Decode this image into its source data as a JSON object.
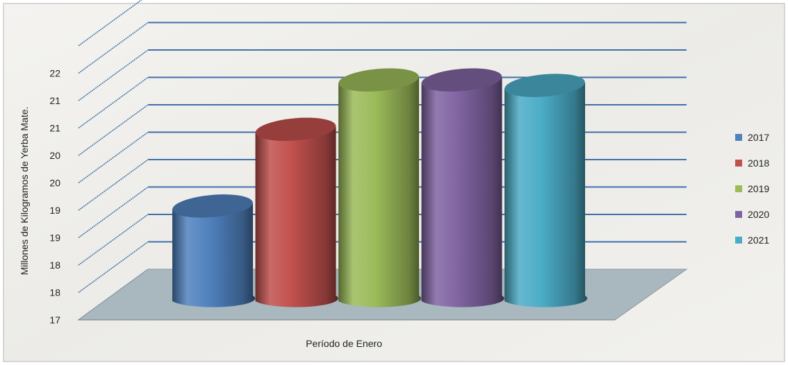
{
  "chart_data": {
    "type": "bar",
    "title": "",
    "xlabel": "Período de  Enero",
    "ylabel": "Millones de Kilogramos de Yerba Mate.",
    "y_tick_labels": [
      "17",
      "18",
      "18",
      "19",
      "19",
      "20",
      "20",
      "21",
      "21",
      "22"
    ],
    "ylim": [
      17,
      21.5
    ],
    "series": [
      {
        "name": "2017",
        "values": [
          18.9
        ]
      },
      {
        "name": "2018",
        "values": [
          20.3
        ]
      },
      {
        "name": "2019",
        "values": [
          21.2
        ]
      },
      {
        "name": "2020",
        "values": [
          21.2
        ]
      },
      {
        "name": "2021",
        "values": [
          21.1
        ]
      }
    ],
    "legend_position": "right",
    "grid": true,
    "colors": {
      "2017": "#4f81bd",
      "2018": "#c0504d",
      "2019": "#9bbb59",
      "2020": "#8064a2",
      "2021": "#4bacc6"
    }
  }
}
